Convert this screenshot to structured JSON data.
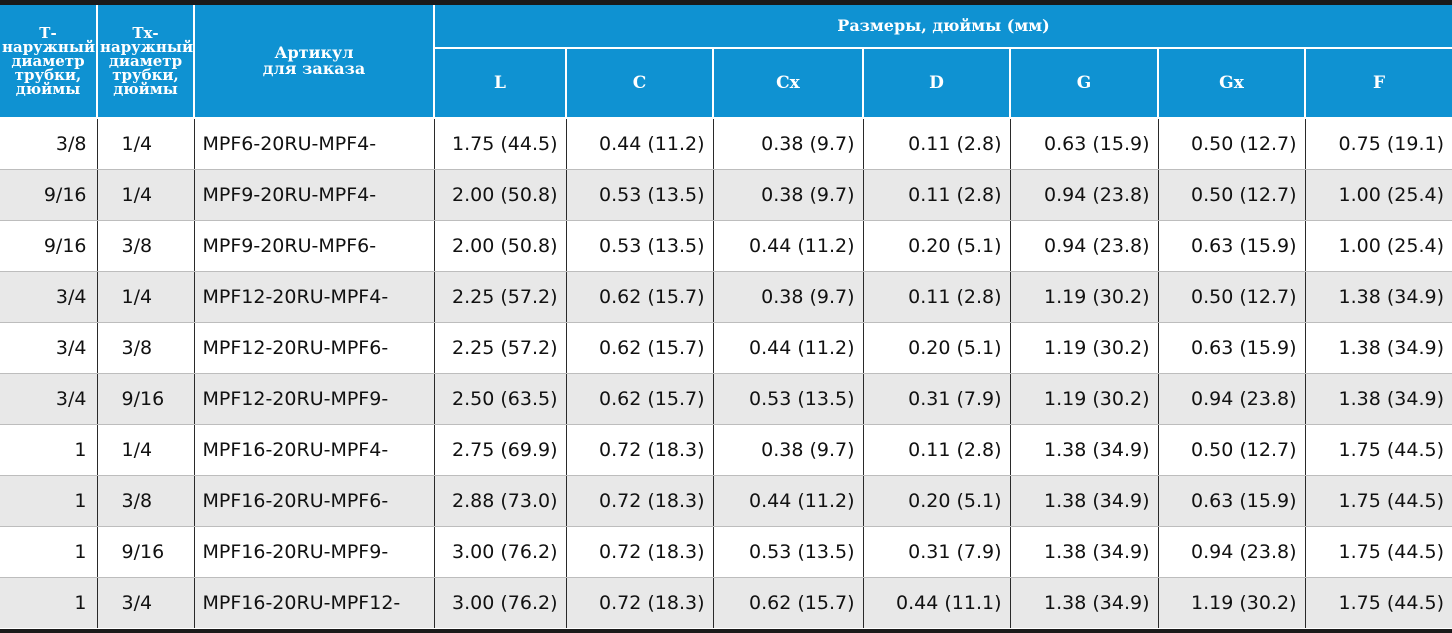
{
  "header": {
    "col_t": [
      "Т-",
      "наружный",
      "диаметр",
      "трубки,",
      "дюймы"
    ],
    "col_tx": [
      "Тх-",
      "наружный",
      "диаметр",
      "трубки,",
      "дюймы"
    ],
    "col_part": [
      "Артикул",
      "для заказа"
    ],
    "dimensions_group": "Размеры, дюймы (мм)",
    "dim_cols": [
      "L",
      "C",
      "Cx",
      "D",
      "G",
      "Gx",
      "F"
    ]
  },
  "rows": [
    {
      "t": "3/8",
      "tx": "1/4",
      "part": "MPF6-20RU-MPF4-",
      "L": "1.75 (44.5)",
      "C": "0.44 (11.2)",
      "Cx": "0.38 (9.7)",
      "D": "0.11 (2.8)",
      "G": "0.63 (15.9)",
      "Gx": "0.50 (12.7)",
      "F": "0.75 (19.1)"
    },
    {
      "t": "9/16",
      "tx": "1/4",
      "part": "MPF9-20RU-MPF4-",
      "L": "2.00 (50.8)",
      "C": "0.53 (13.5)",
      "Cx": "0.38 (9.7)",
      "D": "0.11 (2.8)",
      "G": "0.94 (23.8)",
      "Gx": "0.50 (12.7)",
      "F": "1.00 (25.4)"
    },
    {
      "t": "9/16",
      "tx": "3/8",
      "part": "MPF9-20RU-MPF6-",
      "L": "2.00 (50.8)",
      "C": "0.53 (13.5)",
      "Cx": "0.44 (11.2)",
      "D": "0.20 (5.1)",
      "G": "0.94 (23.8)",
      "Gx": "0.63 (15.9)",
      "F": "1.00 (25.4)"
    },
    {
      "t": "3/4",
      "tx": "1/4",
      "part": "MPF12-20RU-MPF4-",
      "L": "2.25 (57.2)",
      "C": "0.62 (15.7)",
      "Cx": "0.38 (9.7)",
      "D": "0.11 (2.8)",
      "G": "1.19 (30.2)",
      "Gx": "0.50 (12.7)",
      "F": "1.38 (34.9)"
    },
    {
      "t": "3/4",
      "tx": "3/8",
      "part": "MPF12-20RU-MPF6-",
      "L": "2.25 (57.2)",
      "C": "0.62 (15.7)",
      "Cx": "0.44 (11.2)",
      "D": "0.20 (5.1)",
      "G": "1.19 (30.2)",
      "Gx": "0.63 (15.9)",
      "F": "1.38 (34.9)"
    },
    {
      "t": "3/4",
      "tx": "9/16",
      "part": "MPF12-20RU-MPF9-",
      "L": "2.50 (63.5)",
      "C": "0.62 (15.7)",
      "Cx": "0.53 (13.5)",
      "D": "0.31 (7.9)",
      "G": "1.19 (30.2)",
      "Gx": "0.94 (23.8)",
      "F": "1.38 (34.9)"
    },
    {
      "t": "1",
      "tx": "1/4",
      "part": "MPF16-20RU-MPF4-",
      "L": "2.75 (69.9)",
      "C": "0.72 (18.3)",
      "Cx": "0.38 (9.7)",
      "D": "0.11 (2.8)",
      "G": "1.38 (34.9)",
      "Gx": "0.50 (12.7)",
      "F": "1.75 (44.5)"
    },
    {
      "t": "1",
      "tx": "3/8",
      "part": "MPF16-20RU-MPF6-",
      "L": "2.88 (73.0)",
      "C": "0.72 (18.3)",
      "Cx": "0.44 (11.2)",
      "D": "0.20 (5.1)",
      "G": "1.38 (34.9)",
      "Gx": "0.63 (15.9)",
      "F": "1.75 (44.5)"
    },
    {
      "t": "1",
      "tx": "9/16",
      "part": "MPF16-20RU-MPF9-",
      "L": "3.00 (76.2)",
      "C": "0.72 (18.3)",
      "Cx": "0.53 (13.5)",
      "D": "0.31 (7.9)",
      "G": "1.38 (34.9)",
      "Gx": "0.94 (23.8)",
      "F": "1.75 (44.5)"
    },
    {
      "t": "1",
      "tx": "3/4",
      "part": "MPF16-20RU-MPF12-",
      "L": "3.00 (76.2)",
      "C": "0.72 (18.3)",
      "Cx": "0.62 (15.7)",
      "D": "0.44 (11.1)",
      "G": "1.38 (34.9)",
      "Gx": "1.19 (30.2)",
      "F": "1.75 (44.5)"
    }
  ],
  "colors": {
    "header_bg": "#0f92d2",
    "header_text": "#ffffff",
    "row_shade": "#e8e8e8",
    "frame": "#1a1a1a"
  }
}
